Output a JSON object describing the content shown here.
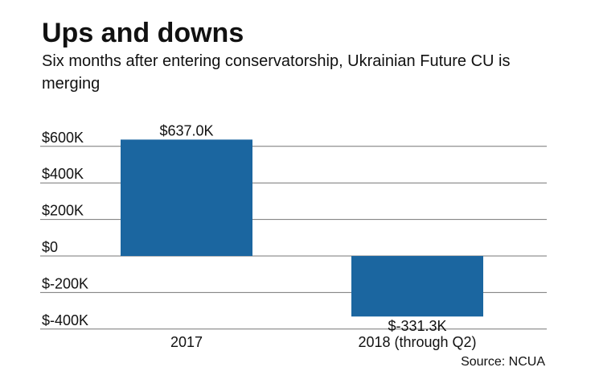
{
  "chart_data": {
    "type": "bar",
    "title": "Ups and downs",
    "subtitle": "Six months after entering conservatorship, Ukrainian Future CU is merging",
    "categories": [
      "2017",
      "2018 (through Q2)"
    ],
    "values": [
      637.0,
      -331.3
    ],
    "data_labels": [
      "$637.0K",
      "$-331.3K"
    ],
    "units": "thousands of dollars",
    "ylim": [
      -400,
      600
    ],
    "yticks": [
      600,
      400,
      200,
      0,
      -200,
      -400
    ],
    "ytick_labels": [
      "$600K",
      "$400K",
      "$200K",
      "$0",
      "$-200K",
      "$-400K"
    ],
    "grid": true,
    "bar_color": "#1b66a0",
    "source": "Source: NCUA"
  }
}
